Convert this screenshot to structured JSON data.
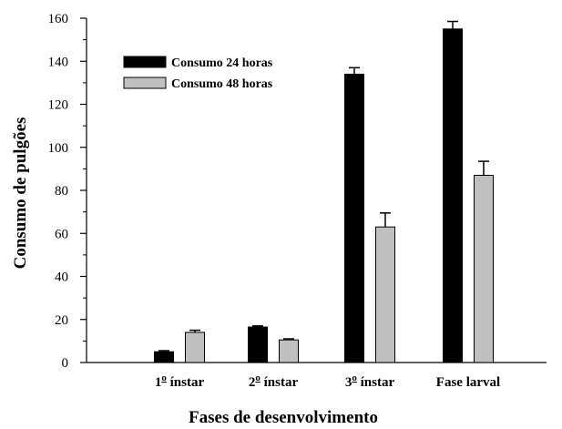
{
  "chart_data": {
    "type": "bar",
    "categories": [
      {
        "num": "1",
        "sup": "o",
        "text": " ínstar"
      },
      {
        "num": "2",
        "sup": "o",
        "text": " ínstar"
      },
      {
        "num": "3",
        "sup": "o",
        "text": " ínstar"
      },
      {
        "num": "",
        "sup": "",
        "text": "Fase larval"
      }
    ],
    "series": [
      {
        "name": "Consumo 24 horas",
        "color": "#000000",
        "values": [
          5,
          16.5,
          134,
          155
        ],
        "errors": [
          0.5,
          0.5,
          3,
          3.5
        ]
      },
      {
        "name": "Consumo 48 horas",
        "color": "#c0c0c0",
        "values": [
          14,
          10.5,
          63,
          87
        ],
        "errors": [
          1,
          0.5,
          6.5,
          6.5
        ]
      }
    ],
    "ylim": [
      0,
      160
    ],
    "yticks": [
      0,
      20,
      40,
      60,
      80,
      100,
      120,
      140,
      160
    ],
    "xlabel": "Fases de desenvolvimento",
    "ylabel": "Consumo de pulgões",
    "legend_position": "top-left",
    "grid": false
  }
}
